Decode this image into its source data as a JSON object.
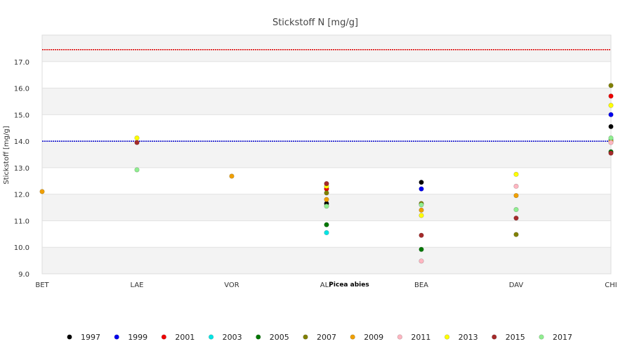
{
  "chart_data": {
    "type": "scatter",
    "title": "Stickstoff N [mg/g]",
    "xlabel": "",
    "ylabel": "Stickstoff [mg/g]",
    "categories": [
      "BET",
      "LAE",
      "VOR",
      "ALP",
      "BEA",
      "DAV",
      "CHI"
    ],
    "ylim": [
      9.0,
      18.0
    ],
    "yticks": [
      "9.0",
      "10.0",
      "11.0",
      "12.0",
      "13.0",
      "14.0",
      "15.0",
      "16.0",
      "17.0"
    ],
    "ytick_values": [
      9,
      10,
      11,
      12,
      13,
      14,
      15,
      16,
      17
    ],
    "grid": "alternating horizontal bands",
    "annotation": "Picea abies",
    "reference_lines": [
      {
        "value": 17.45,
        "color": "#dd0000",
        "style": "dotted"
      },
      {
        "value": 14.0,
        "color": "#0000cc",
        "style": "dotted"
      }
    ],
    "legend_position": "bottom",
    "series": [
      {
        "name": "1997",
        "color": "#000000",
        "values": [
          null,
          null,
          null,
          11.65,
          12.45,
          null,
          14.55
        ]
      },
      {
        "name": "1999",
        "color": "#0000ee",
        "values": [
          null,
          null,
          null,
          null,
          12.2,
          null,
          15.0
        ]
      },
      {
        "name": "2001",
        "color": "#ee0000",
        "values": [
          null,
          null,
          null,
          12.2,
          null,
          null,
          15.7
        ]
      },
      {
        "name": "2003",
        "color": "#00e5e5",
        "values": [
          null,
          null,
          null,
          10.55,
          null,
          null,
          14.05
        ]
      },
      {
        "name": "2005",
        "color": "#007700",
        "values": [
          null,
          null,
          null,
          10.85,
          9.92,
          null,
          13.6
        ]
      },
      {
        "name": "2007",
        "color": "#808000",
        "values": [
          null,
          null,
          null,
          12.05,
          11.65,
          10.48,
          16.1
        ]
      },
      {
        "name": "2009",
        "color": "#f0a000",
        "values": [
          12.1,
          null,
          12.68,
          11.8,
          11.4,
          11.95,
          14.0
        ]
      },
      {
        "name": "2011",
        "color": "#ffb6c1",
        "values": [
          null,
          null,
          null,
          null,
          9.48,
          12.3,
          13.95
        ]
      },
      {
        "name": "2013",
        "color": "#ffff00",
        "values": [
          null,
          14.12,
          null,
          12.3,
          11.2,
          12.75,
          15.35
        ]
      },
      {
        "name": "2015",
        "color": "#a52a2a",
        "values": [
          null,
          13.95,
          null,
          12.4,
          10.45,
          11.1,
          13.55
        ]
      },
      {
        "name": "2017",
        "color": "#90ee90",
        "values": [
          null,
          12.92,
          null,
          11.55,
          11.6,
          11.42,
          14.12
        ]
      }
    ]
  }
}
